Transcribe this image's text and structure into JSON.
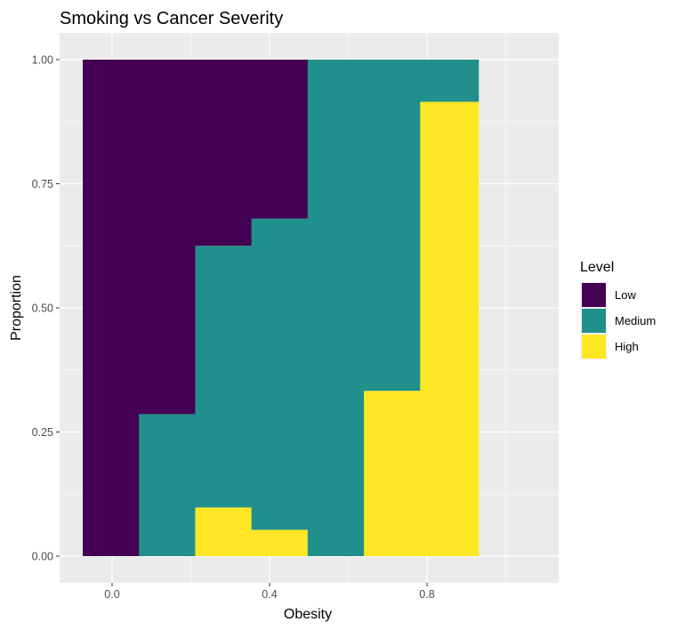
{
  "chart_data": {
    "type": "bar",
    "stacked": true,
    "title": "Smoking vs Cancer Severity",
    "xlabel": "Obesity",
    "ylabel": "Proportion",
    "x": [
      0.0,
      0.1429,
      0.2857,
      0.4286,
      0.5714,
      0.7143,
      0.8571
    ],
    "x_ticks": [
      "0.0",
      "0.4",
      "0.8"
    ],
    "x_tick_values": [
      0.0,
      0.4,
      0.8
    ],
    "y_ticks": [
      "0.00",
      "0.25",
      "0.50",
      "0.75",
      "1.00"
    ],
    "y_tick_values": [
      0.0,
      0.25,
      0.5,
      0.75,
      1.0
    ],
    "ylim": [
      0,
      1
    ],
    "legend_title": "Level",
    "legend_position": "right",
    "grid": true,
    "series": [
      {
        "name": "Low",
        "color": "#440154",
        "values": [
          1.0,
          0.714,
          0.375,
          0.32,
          0.0,
          0.0,
          0.0
        ]
      },
      {
        "name": "Medium",
        "color": "#21908C",
        "values": [
          0.0,
          0.286,
          0.527,
          0.627,
          1.0,
          0.667,
          0.085
        ]
      },
      {
        "name": "High",
        "color": "#FDE725",
        "values": [
          0.0,
          0.0,
          0.098,
          0.053,
          0.0,
          0.333,
          0.915
        ]
      }
    ]
  }
}
